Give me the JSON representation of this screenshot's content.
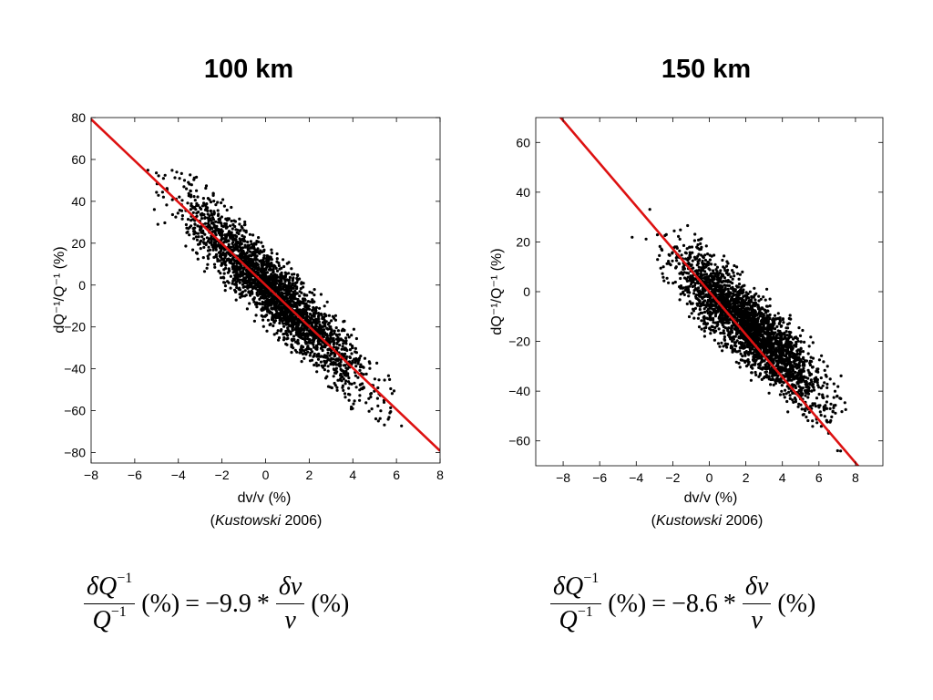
{
  "chart_data": [
    {
      "type": "scatter",
      "title": "100 km",
      "xlabel": "dv/v (%)",
      "ylabel": "dQ⁻¹/Q⁻¹ (%)",
      "xlim": [
        -8,
        8
      ],
      "ylim": [
        -85,
        80
      ],
      "xticks": [
        -8,
        -6,
        -4,
        -2,
        0,
        2,
        4,
        6,
        8
      ],
      "yticks": [
        -80,
        -60,
        -40,
        -20,
        0,
        20,
        40,
        60,
        80
      ],
      "x_tick_labels": [
        "−8",
        "−6",
        "−4",
        "−2",
        "0",
        "2",
        "4",
        "6",
        "8"
      ],
      "y_tick_labels": [
        "−80",
        "−60",
        "−40",
        "−20",
        "0",
        "20",
        "40",
        "60",
        "80"
      ],
      "fit_line": {
        "slope": -9.9,
        "intercept": 0,
        "color": "#dd1111"
      },
      "point_cloud": {
        "x_range": [
          -6.5,
          7.5
        ],
        "slope": -9.9,
        "spread": 14,
        "count": 2600,
        "color": "#000000"
      },
      "grid": false,
      "credit_author": "Kustowski",
      "credit_year": "2006"
    },
    {
      "type": "scatter",
      "title": "150 km",
      "xlabel": "dv/v (%)",
      "ylabel": "dQ⁻¹/Q⁻¹ (%)",
      "xlim": [
        -9.5,
        9.5
      ],
      "ylim": [
        -70,
        70
      ],
      "xticks": [
        -8,
        -6,
        -4,
        -2,
        0,
        2,
        4,
        6,
        8
      ],
      "yticks": [
        -60,
        -40,
        -20,
        0,
        20,
        40,
        60
      ],
      "x_tick_labels": [
        "−8",
        "−6",
        "−4",
        "−2",
        "0",
        "2",
        "4",
        "6",
        "8"
      ],
      "y_tick_labels": [
        "−60",
        "−40",
        "−20",
        "0",
        "20",
        "40",
        "60"
      ],
      "fit_line": {
        "slope": -8.6,
        "intercept": 0,
        "color": "#dd1111"
      },
      "point_cloud": {
        "x_range": [
          -4.5,
          8.8
        ],
        "slope": -6.5,
        "spread": 13,
        "count": 2600,
        "color": "#000000"
      },
      "grid": false,
      "credit_author": "Kustowski",
      "credit_year": "2006"
    }
  ],
  "equations": [
    {
      "lhs_num": "δQ",
      "lhs_den": "Q",
      "exp": "−1",
      "pct": "(%)",
      "equals": "=",
      "coef": "−9.9",
      "times": "*",
      "rhs_num": "δv",
      "rhs_den": "v",
      "pct2": "(%)"
    },
    {
      "lhs_num": "δQ",
      "lhs_den": "Q",
      "exp": "−1",
      "pct": "(%)",
      "equals": "=",
      "coef": "−8.6",
      "times": "*",
      "rhs_num": "δv",
      "rhs_den": "v",
      "pct2": "(%)"
    }
  ]
}
